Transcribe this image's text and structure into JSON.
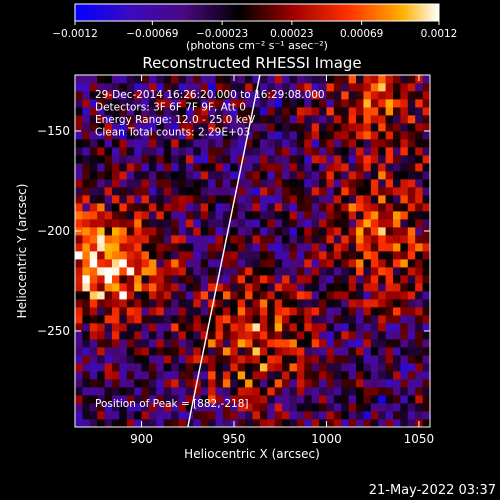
{
  "chart_data": {
    "type": "heatmap",
    "title": "Reconstructed RHESSI Image",
    "xlabel": "Heliocentric X (arcsec)",
    "ylabel": "Heliocentric Y (arcsec)",
    "xlim": [
      864,
      1056
    ],
    "ylim": [
      -298,
      -122
    ],
    "x_ticks": [
      900,
      950,
      1000,
      1050
    ],
    "x_tick_labels": [
      "900",
      "950",
      "1000",
      "1050"
    ],
    "y_ticks": [
      -150,
      -200,
      -250
    ],
    "y_tick_labels": [
      "−150",
      "−200",
      "−250"
    ],
    "colorbar": {
      "min": -0.0012,
      "max": 0.0012,
      "ticks": [
        -0.0012,
        -0.00069,
        -0.00023,
        0.00023,
        0.00069,
        0.0012
      ],
      "tick_labels": [
        "−0.0012",
        "−0.00069",
        "−0.00023",
        "0.00023",
        "0.00069",
        "0.0012"
      ],
      "label": "(photons cm⁻² s⁻¹ asec⁻²)",
      "colors": [
        "#0000ff",
        "#4a0aa0",
        "#000000",
        "#8a0000",
        "#ff2000",
        "#ff9000",
        "#ffd000",
        "#ffffff"
      ]
    },
    "annotations": [
      "29-Dec-2014 16:26:20.000 to 16:29:08.000",
      "Detectors: 3F 6F 7F 9F, Att 0",
      "Energy Range: 12.0 - 25.0 keV",
      "Clean     Total counts: 2.29E+03"
    ],
    "peak_label": "Position of Peak = [882,-218]",
    "peak_position": [
      882,
      -218
    ],
    "limb_line": [
      [
        925,
        -298
      ],
      [
        964,
        -122
      ]
    ],
    "bright_sources": [
      {
        "x": 880,
        "y": -215,
        "value": 0.0012
      },
      {
        "x": 960,
        "y": -255,
        "value": 0.0008
      },
      {
        "x": 1030,
        "y": -205,
        "value": 0.0007
      },
      {
        "x": 1030,
        "y": -135,
        "value": 0.0007
      }
    ],
    "grid": false
  },
  "footer": {
    "timestamp": "21-May-2022 03:37"
  }
}
